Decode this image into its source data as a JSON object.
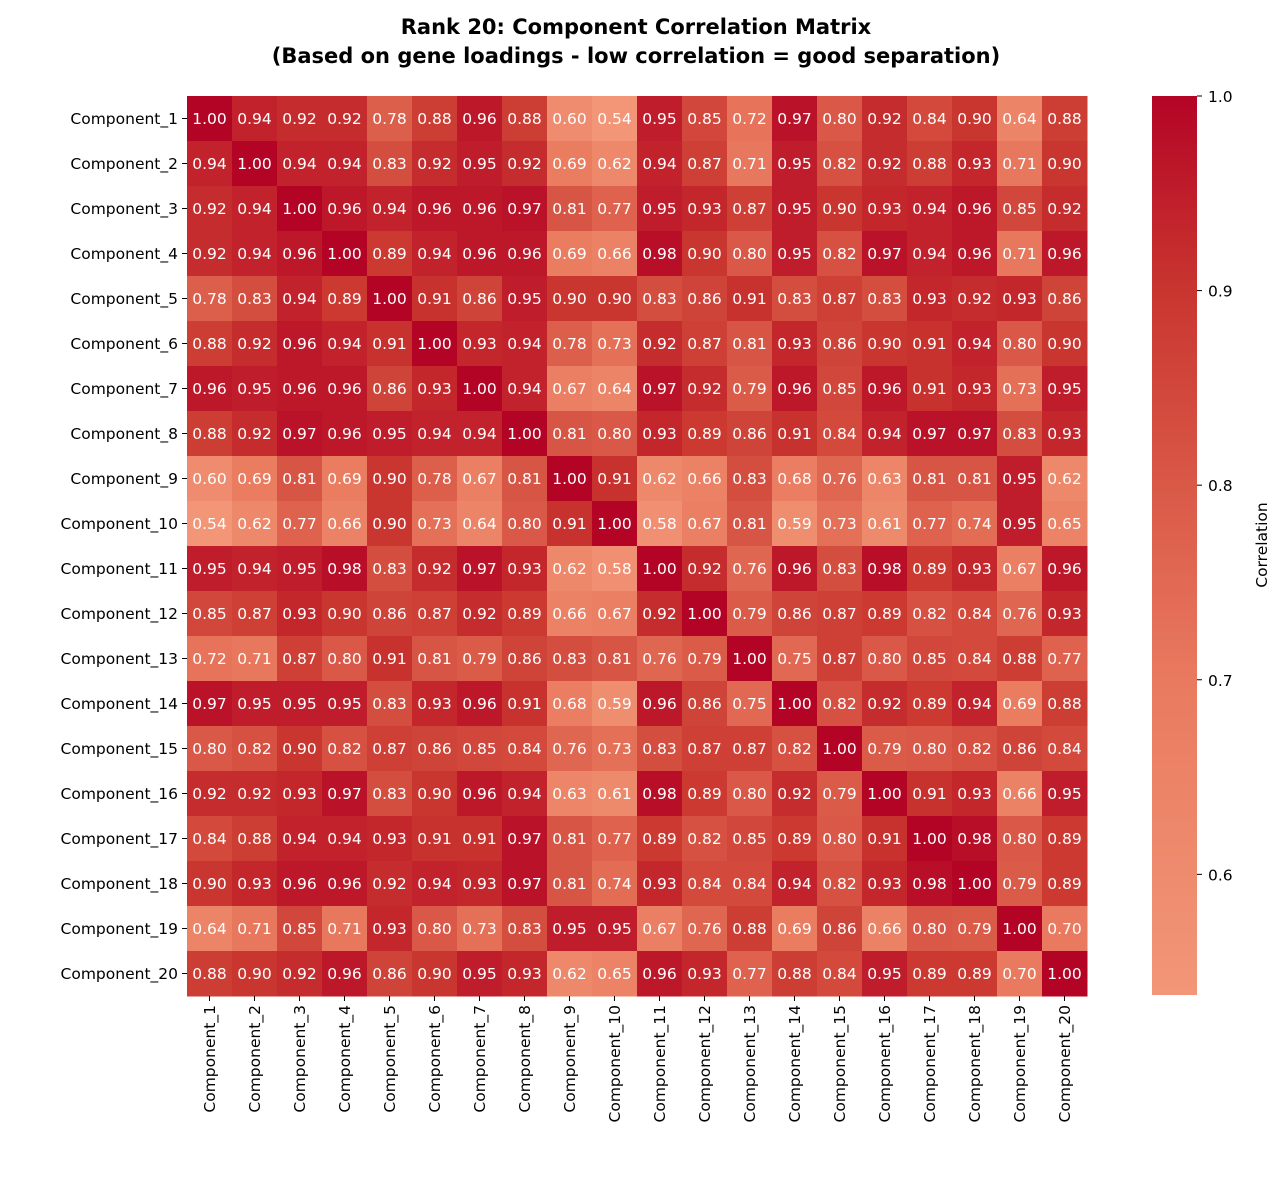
{
  "chart_data": {
    "type": "heatmap",
    "title": [
      "Rank 20: Component Correlation Matrix",
      "(Based on gene loadings - low correlation = good separation)"
    ],
    "labels": [
      "Component_1",
      "Component_2",
      "Component_3",
      "Component_4",
      "Component_5",
      "Component_6",
      "Component_7",
      "Component_8",
      "Component_9",
      "Component_10",
      "Component_11",
      "Component_12",
      "Component_13",
      "Component_14",
      "Component_15",
      "Component_16",
      "Component_17",
      "Component_18",
      "Component_19",
      "Component_20"
    ],
    "values": [
      [
        1.0,
        0.94,
        0.92,
        0.92,
        0.78,
        0.88,
        0.96,
        0.88,
        0.6,
        0.54,
        0.95,
        0.85,
        0.72,
        0.97,
        0.8,
        0.92,
        0.84,
        0.9,
        0.64,
        0.88
      ],
      [
        0.94,
        1.0,
        0.94,
        0.94,
        0.83,
        0.92,
        0.95,
        0.92,
        0.69,
        0.62,
        0.94,
        0.87,
        0.71,
        0.95,
        0.82,
        0.92,
        0.88,
        0.93,
        0.71,
        0.9
      ],
      [
        0.92,
        0.94,
        1.0,
        0.96,
        0.94,
        0.96,
        0.96,
        0.97,
        0.81,
        0.77,
        0.95,
        0.93,
        0.87,
        0.95,
        0.9,
        0.93,
        0.94,
        0.96,
        0.85,
        0.92
      ],
      [
        0.92,
        0.94,
        0.96,
        1.0,
        0.89,
        0.94,
        0.96,
        0.96,
        0.69,
        0.66,
        0.98,
        0.9,
        0.8,
        0.95,
        0.82,
        0.97,
        0.94,
        0.96,
        0.71,
        0.96
      ],
      [
        0.78,
        0.83,
        0.94,
        0.89,
        1.0,
        0.91,
        0.86,
        0.95,
        0.9,
        0.9,
        0.83,
        0.86,
        0.91,
        0.83,
        0.87,
        0.83,
        0.93,
        0.92,
        0.93,
        0.86
      ],
      [
        0.88,
        0.92,
        0.96,
        0.94,
        0.91,
        1.0,
        0.93,
        0.94,
        0.78,
        0.73,
        0.92,
        0.87,
        0.81,
        0.93,
        0.86,
        0.9,
        0.91,
        0.94,
        0.8,
        0.9
      ],
      [
        0.96,
        0.95,
        0.96,
        0.96,
        0.86,
        0.93,
        1.0,
        0.94,
        0.67,
        0.64,
        0.97,
        0.92,
        0.79,
        0.96,
        0.85,
        0.96,
        0.91,
        0.93,
        0.73,
        0.95
      ],
      [
        0.88,
        0.92,
        0.97,
        0.96,
        0.95,
        0.94,
        0.94,
        1.0,
        0.81,
        0.8,
        0.93,
        0.89,
        0.86,
        0.91,
        0.84,
        0.94,
        0.97,
        0.97,
        0.83,
        0.93
      ],
      [
        0.6,
        0.69,
        0.81,
        0.69,
        0.9,
        0.78,
        0.67,
        0.81,
        1.0,
        0.91,
        0.62,
        0.66,
        0.83,
        0.68,
        0.76,
        0.63,
        0.81,
        0.81,
        0.95,
        0.62
      ],
      [
        0.54,
        0.62,
        0.77,
        0.66,
        0.9,
        0.73,
        0.64,
        0.8,
        0.91,
        1.0,
        0.58,
        0.67,
        0.81,
        0.59,
        0.73,
        0.61,
        0.77,
        0.74,
        0.95,
        0.65
      ],
      [
        0.95,
        0.94,
        0.95,
        0.98,
        0.83,
        0.92,
        0.97,
        0.93,
        0.62,
        0.58,
        1.0,
        0.92,
        0.76,
        0.96,
        0.83,
        0.98,
        0.89,
        0.93,
        0.67,
        0.96
      ],
      [
        0.85,
        0.87,
        0.93,
        0.9,
        0.86,
        0.87,
        0.92,
        0.89,
        0.66,
        0.67,
        0.92,
        1.0,
        0.79,
        0.86,
        0.87,
        0.89,
        0.82,
        0.84,
        0.76,
        0.93
      ],
      [
        0.72,
        0.71,
        0.87,
        0.8,
        0.91,
        0.81,
        0.79,
        0.86,
        0.83,
        0.81,
        0.76,
        0.79,
        1.0,
        0.75,
        0.87,
        0.8,
        0.85,
        0.84,
        0.88,
        0.77
      ],
      [
        0.97,
        0.95,
        0.95,
        0.95,
        0.83,
        0.93,
        0.96,
        0.91,
        0.68,
        0.59,
        0.96,
        0.86,
        0.75,
        1.0,
        0.82,
        0.92,
        0.89,
        0.94,
        0.69,
        0.88
      ],
      [
        0.8,
        0.82,
        0.9,
        0.82,
        0.87,
        0.86,
        0.85,
        0.84,
        0.76,
        0.73,
        0.83,
        0.87,
        0.87,
        0.82,
        1.0,
        0.79,
        0.8,
        0.82,
        0.86,
        0.84
      ],
      [
        0.92,
        0.92,
        0.93,
        0.97,
        0.83,
        0.9,
        0.96,
        0.94,
        0.63,
        0.61,
        0.98,
        0.89,
        0.8,
        0.92,
        0.79,
        1.0,
        0.91,
        0.93,
        0.66,
        0.95
      ],
      [
        0.84,
        0.88,
        0.94,
        0.94,
        0.93,
        0.91,
        0.91,
        0.97,
        0.81,
        0.77,
        0.89,
        0.82,
        0.85,
        0.89,
        0.8,
        0.91,
        1.0,
        0.98,
        0.8,
        0.89
      ],
      [
        0.9,
        0.93,
        0.96,
        0.96,
        0.92,
        0.94,
        0.93,
        0.97,
        0.81,
        0.74,
        0.93,
        0.84,
        0.84,
        0.94,
        0.82,
        0.93,
        0.98,
        1.0,
        0.79,
        0.89
      ],
      [
        0.64,
        0.71,
        0.85,
        0.71,
        0.93,
        0.8,
        0.73,
        0.83,
        0.95,
        0.95,
        0.67,
        0.76,
        0.88,
        0.69,
        0.86,
        0.66,
        0.8,
        0.79,
        1.0,
        0.7
      ],
      [
        0.88,
        0.9,
        0.92,
        0.96,
        0.86,
        0.9,
        0.95,
        0.93,
        0.62,
        0.65,
        0.96,
        0.93,
        0.77,
        0.88,
        0.84,
        0.95,
        0.89,
        0.89,
        0.7,
        1.0
      ]
    ],
    "colorbar": {
      "label": "Correlation",
      "ticks": [
        "0.6",
        "0.7",
        "0.8",
        "0.9",
        "1.0"
      ],
      "range": [
        0.538,
        1.0
      ]
    },
    "colormap": [
      "#f29677",
      "#e97a5f",
      "#d95847",
      "#c9362f",
      "#b40426"
    ]
  }
}
